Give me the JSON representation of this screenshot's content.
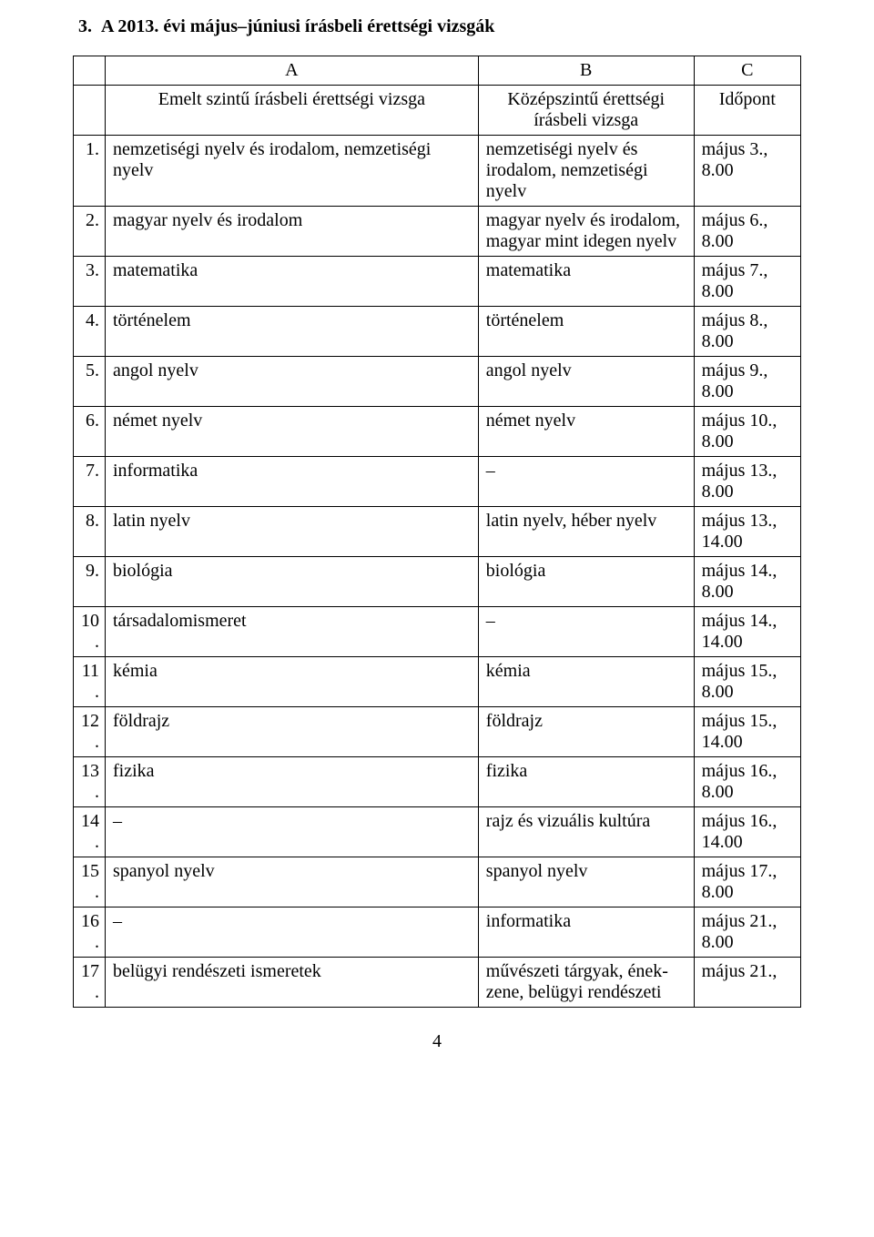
{
  "title": "3.  A 2013. évi május–júniusi írásbeli érettségi vizsgák",
  "headerLetters": {
    "a": "A",
    "b": "B",
    "c": "C"
  },
  "headerLabels": {
    "a": "Emelt szintű írásbeli érettségi vizsga",
    "b": "Középszintű érettségi írásbeli vizsga",
    "c": "Időpont"
  },
  "rows": [
    {
      "n": "1.",
      "a": "nemzetiségi nyelv és irodalom, nemzetiségi nyelv",
      "b": "nemzetiségi nyelv és irodalom, nemzetiségi nyelv",
      "c": "május 3., 8.00"
    },
    {
      "n": "2.",
      "a": "magyar nyelv és irodalom",
      "b": "magyar nyelv és irodalom, magyar mint idegen nyelv",
      "c": "május 6., 8.00"
    },
    {
      "n": "3.",
      "a": "matematika",
      "b": "matematika",
      "c": "május 7., 8.00"
    },
    {
      "n": "4.",
      "a": "történelem",
      "b": "történelem",
      "c": "május 8., 8.00"
    },
    {
      "n": "5.",
      "a": "angol nyelv",
      "b": "angol nyelv",
      "c": "május 9., 8.00"
    },
    {
      "n": "6.",
      "a": "német nyelv",
      "b": "német nyelv",
      "c": "május 10., 8.00"
    },
    {
      "n": "7.",
      "a": "informatika",
      "b": "–",
      "c": "május 13., 8.00"
    },
    {
      "n": "8.",
      "a": "latin nyelv",
      "b": "latin nyelv, héber nyelv",
      "c": "május 13., 14.00"
    },
    {
      "n": "9.",
      "a": "biológia",
      "b": "biológia",
      "c": "május 14., 8.00"
    },
    {
      "n": "10.",
      "a": "társadalomismeret",
      "b": "–",
      "c": "május 14., 14.00"
    },
    {
      "n": "11.",
      "a": "kémia",
      "b": "kémia",
      "c": "május 15., 8.00"
    },
    {
      "n": "12.",
      "a": "földrajz",
      "b": "földrajz",
      "c": "május 15., 14.00"
    },
    {
      "n": "13.",
      "a": "fizika",
      "b": "fizika",
      "c": "május 16., 8.00"
    },
    {
      "n": "14.",
      "a": "–",
      "b": "rajz és vizuális kultúra",
      "c": "május 16., 14.00"
    },
    {
      "n": "15.",
      "a": "spanyol nyelv",
      "b": "spanyol nyelv",
      "c": "május 17., 8.00"
    },
    {
      "n": "16.",
      "a": "–",
      "b": "informatika",
      "c": "május 21., 8.00"
    },
    {
      "n": "17.",
      "a": "belügyi rendészeti ismeretek",
      "b": "művészeti tárgyak, ének-zene, belügyi rendészeti",
      "c": "május 21.,"
    }
  ],
  "pageNumber": "4",
  "style": {
    "fontFamily": "Times New Roman",
    "textColor": "#000000",
    "borderColor": "#000000",
    "background": "#ffffff",
    "titleFontSize": 20,
    "cellFontSize": 20,
    "columnWidthsPx": [
      34,
      398,
      230,
      114
    ]
  }
}
